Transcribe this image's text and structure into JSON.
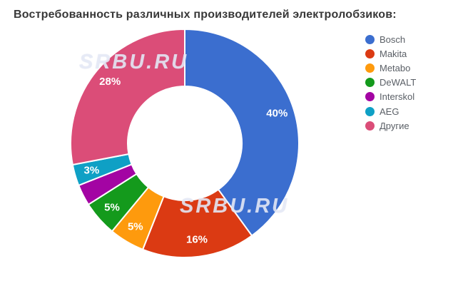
{
  "title": "Востребованность различных производителей электролобзиков:",
  "watermark": {
    "text": "SRBU.RU"
  },
  "chart_data": {
    "type": "pie",
    "donut": true,
    "title": "Востребованность различных производителей электролобзиков:",
    "unit": "%",
    "legend_position": "right",
    "start_angle_deg": 0,
    "direction": "clockwise",
    "slices": [
      {
        "label": "Bosch",
        "value": 40,
        "slice_text": "40%",
        "color": "#3B6ECF"
      },
      {
        "label": "Makita",
        "value": 16,
        "slice_text": "16%",
        "color": "#DB3A13"
      },
      {
        "label": "Metabo",
        "value": 5,
        "slice_text": "5%",
        "color": "#FE9A0D"
      },
      {
        "label": "DeWALT",
        "value": 5,
        "slice_text": "5%",
        "color": "#149A1C"
      },
      {
        "label": "Interskol",
        "value": 3,
        "slice_text": "",
        "color": "#A304A3"
      },
      {
        "label": "AEG",
        "value": 3,
        "slice_text": "3%",
        "color": "#0FA0C5"
      },
      {
        "label": "Другие",
        "value": 28,
        "slice_text": "28%",
        "color": "#DB4D78"
      }
    ]
  }
}
